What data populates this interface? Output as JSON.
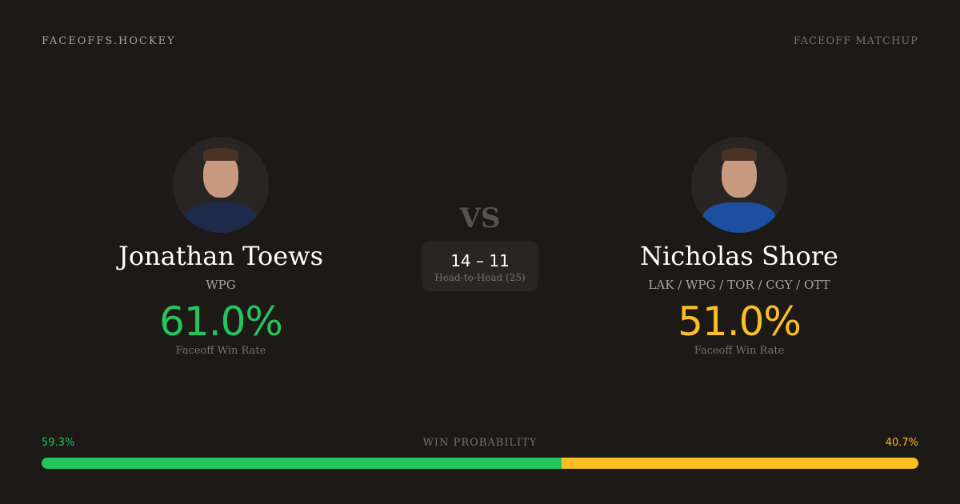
{
  "header": {
    "brand": "FACEOFFS.HOCKEY",
    "tag": "FACEOFF MATCHUP"
  },
  "left": {
    "name": "Jonathan Toews",
    "team": "WPG",
    "win_rate": "61.0%",
    "win_rate_label": "Faceoff Win Rate",
    "color": "#22c55e"
  },
  "right": {
    "name": "Nicholas Shore",
    "team": "LAK / WPG / TOR / CGY / OTT",
    "win_rate": "51.0%",
    "win_rate_label": "Faceoff Win Rate",
    "color": "#fbbf24"
  },
  "vs": "VS",
  "head_to_head": {
    "score": "14 – 11",
    "label": "Head-to-Head (25)"
  },
  "probability": {
    "label": "WIN PROBABILITY",
    "left": "59.3%",
    "right": "40.7%",
    "left_value": 59.3,
    "right_value": 40.7
  }
}
